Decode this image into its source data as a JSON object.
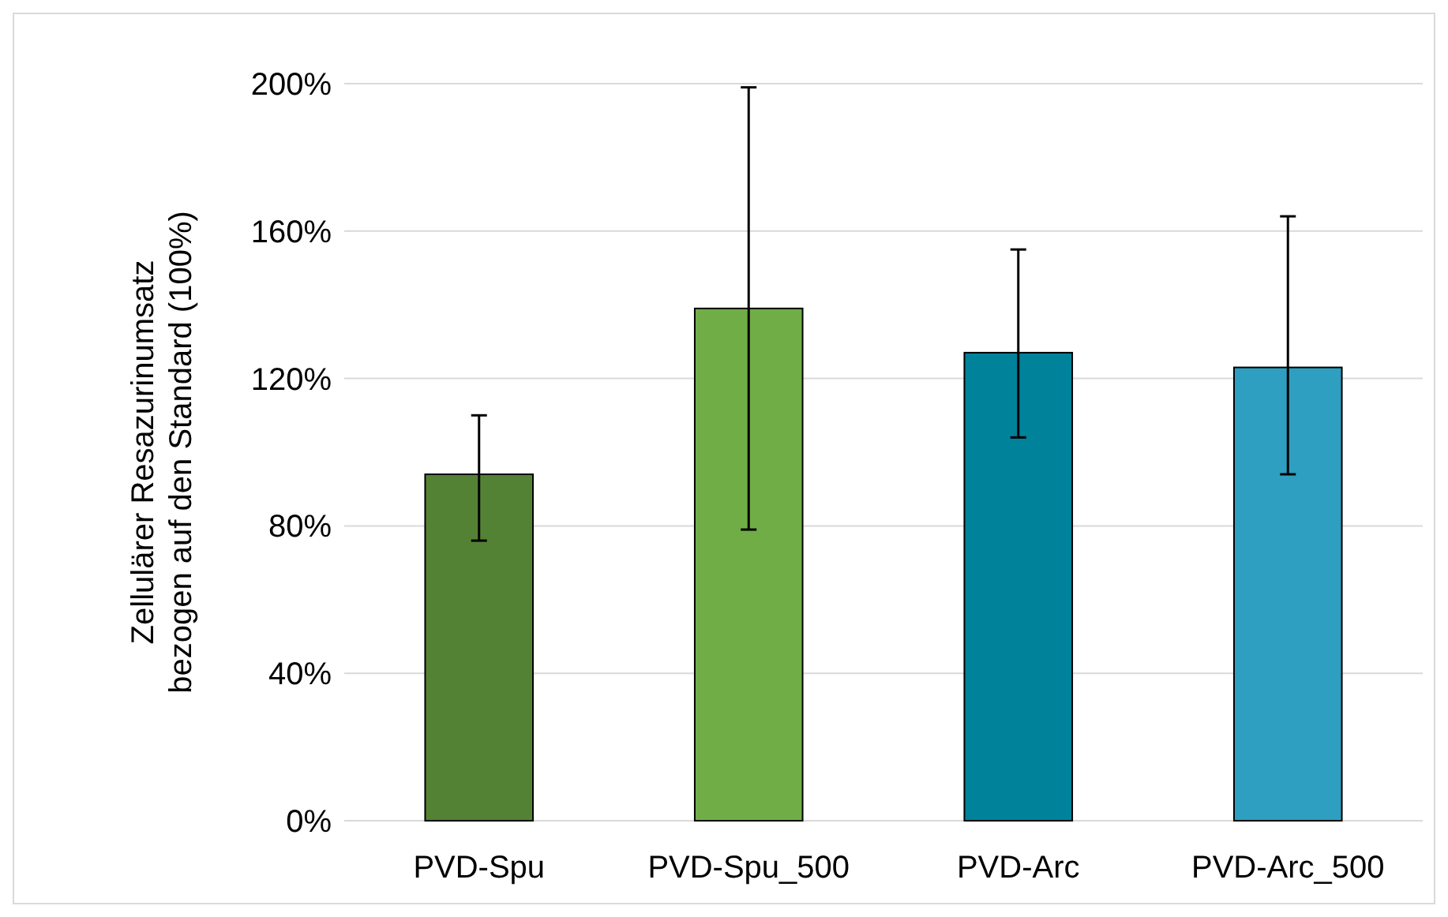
{
  "chart_data": {
    "type": "bar",
    "ylabel": "Zellulärer Resazurinumsatz\nbezogen auf den Standard (100%)",
    "categories": [
      "PVD-Spu",
      "PVD-Spu_500",
      "PVD-Arc",
      "PVD-Arc_500"
    ],
    "values": [
      94,
      139,
      127,
      123
    ],
    "colors": [
      "#548235",
      "#70ad47",
      "#00829b",
      "#2e9fc0"
    ],
    "errors": [
      [
        76,
        110
      ],
      [
        79,
        199
      ],
      [
        104,
        155
      ],
      [
        94,
        164
      ]
    ],
    "ylim": [
      0,
      200
    ],
    "yticks": [
      {
        "value": 0,
        "label": "0%"
      },
      {
        "value": 40,
        "label": "40%"
      },
      {
        "value": 80,
        "label": "80%"
      },
      {
        "value": 120,
        "label": "120%"
      },
      {
        "value": 160,
        "label": "160%"
      },
      {
        "value": 200,
        "label": "200%"
      }
    ],
    "grid": "y"
  }
}
